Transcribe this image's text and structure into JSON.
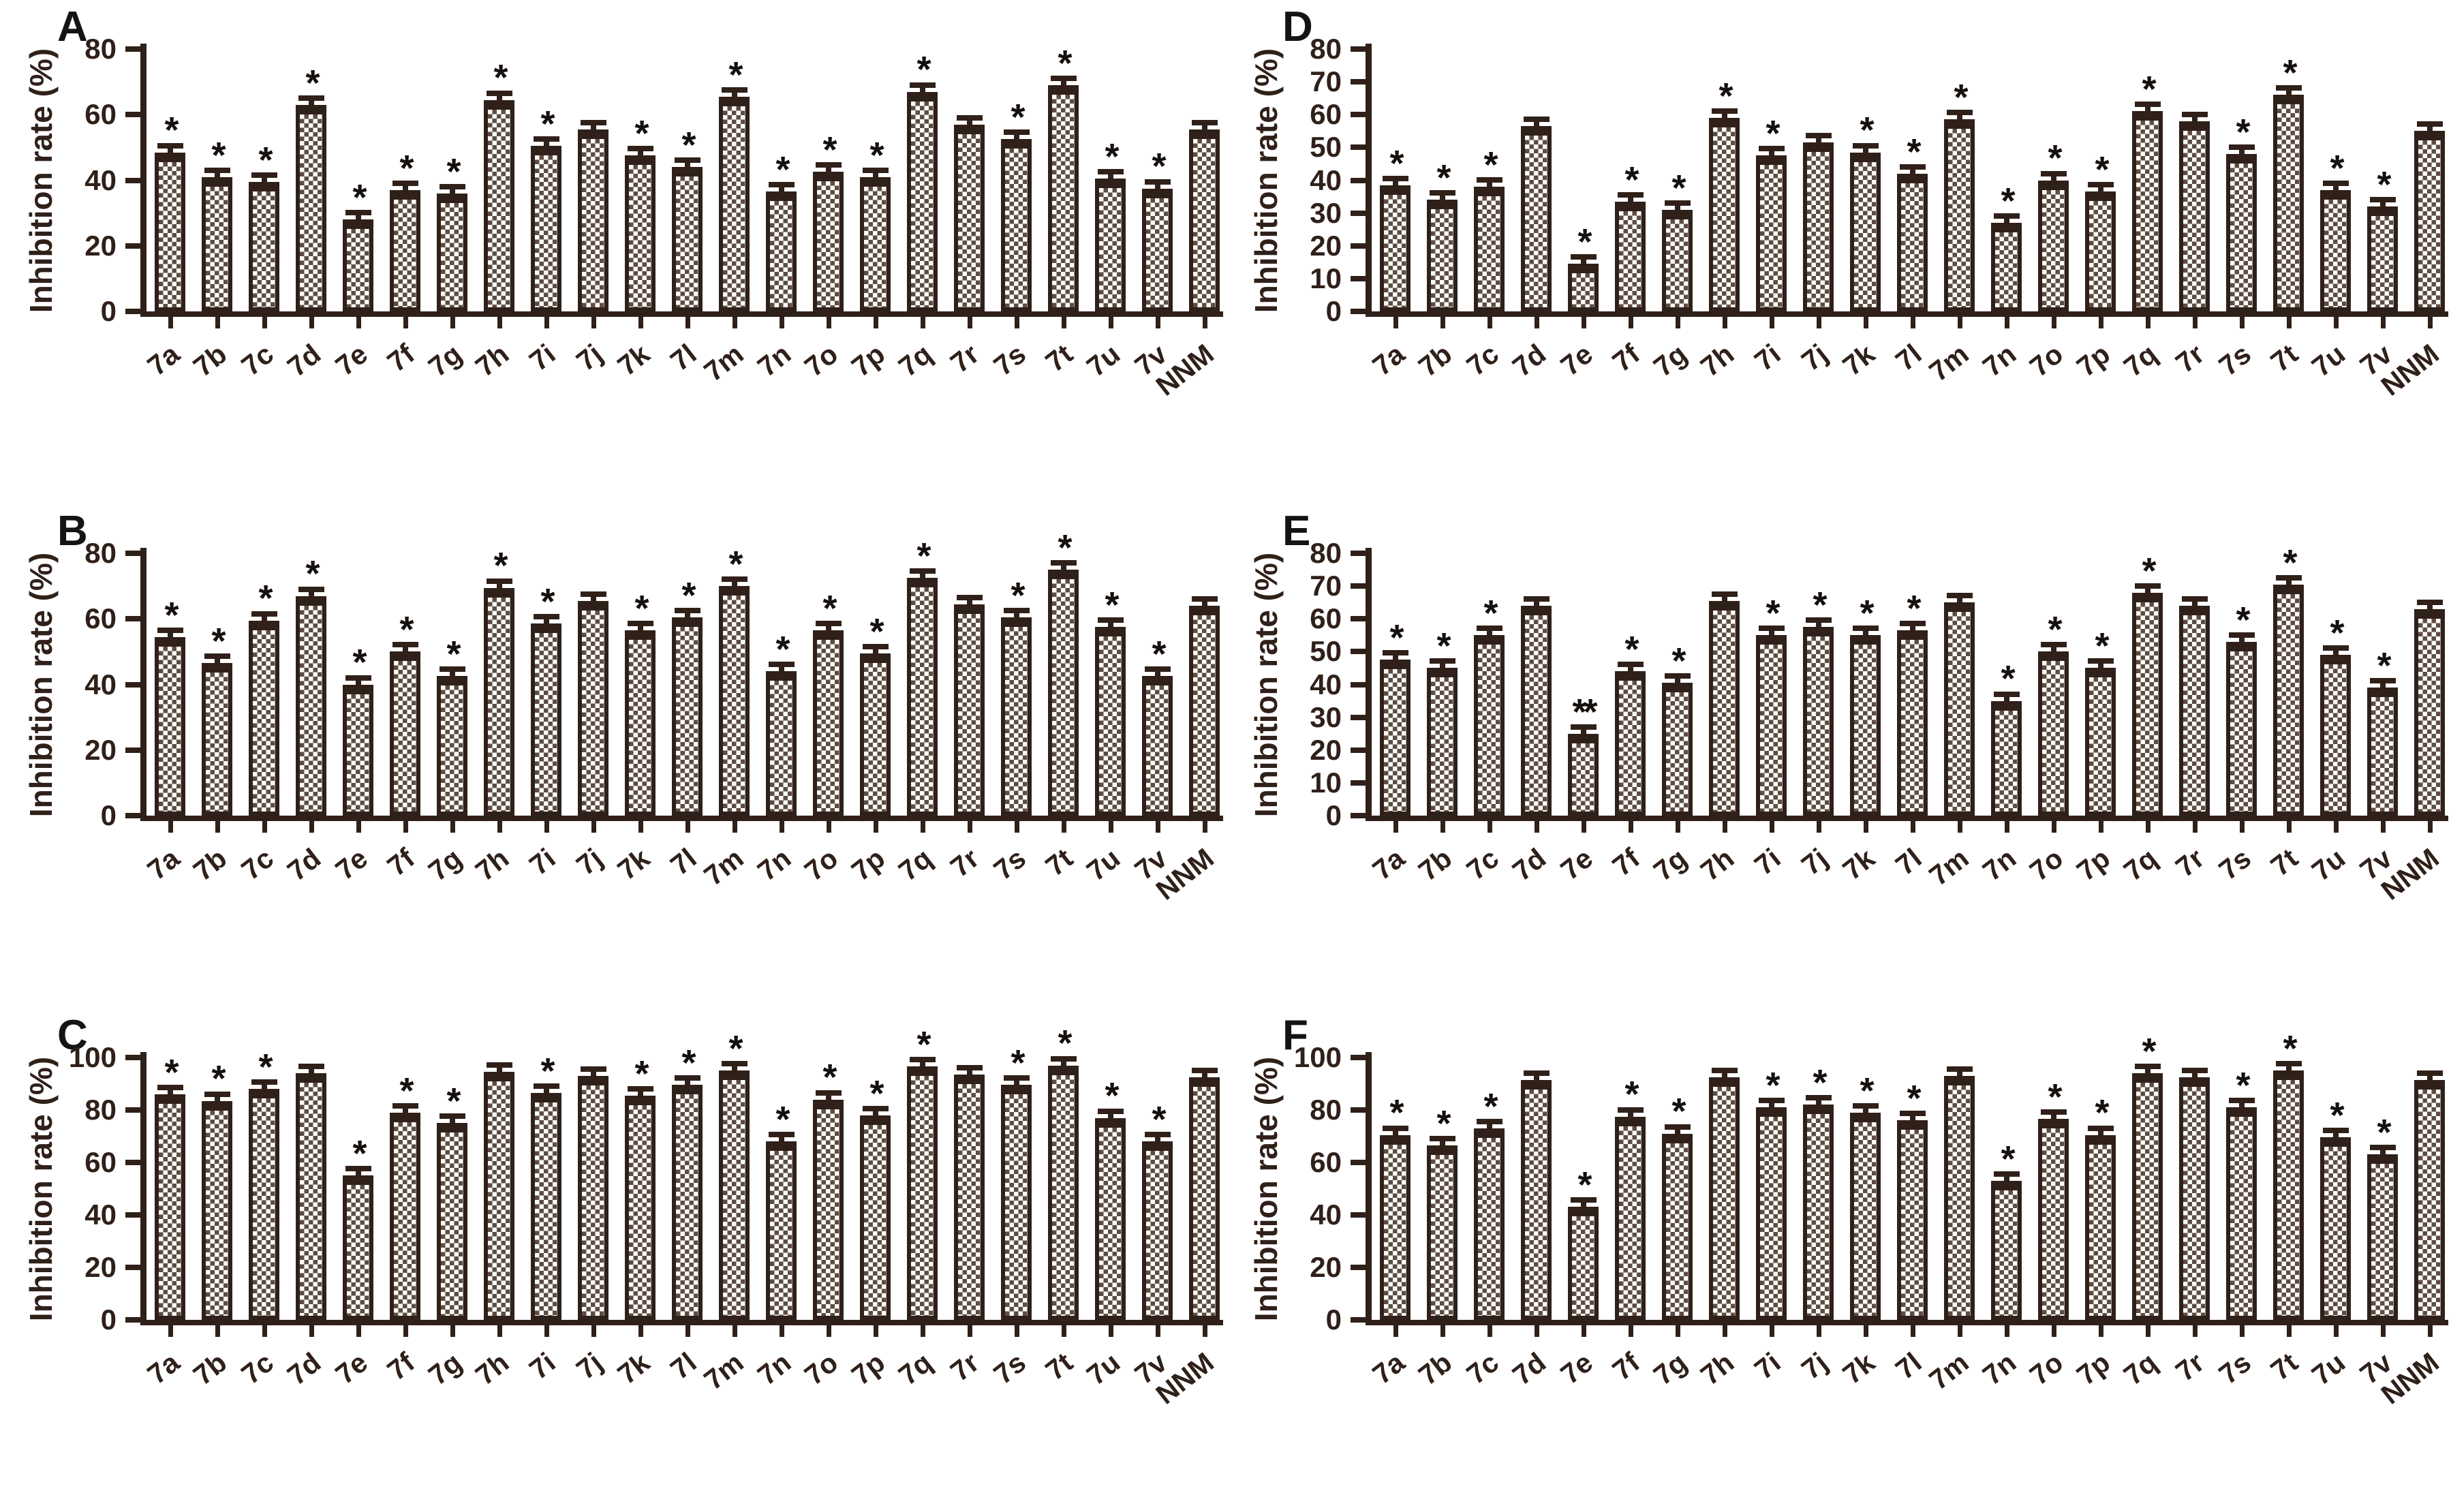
{
  "figure": {
    "background": "#ffffff",
    "ink_color": "#2f2019",
    "bar_fill_light": "#fcfbf9",
    "bar_fill_dark": "#5d4c42",
    "panel_letters": [
      "A",
      "B",
      "C",
      "D",
      "E",
      "F"
    ],
    "axis_title": "Inhibition rate (%)"
  },
  "chart_data": [
    {
      "type": "bar",
      "panel": "A",
      "title": "",
      "xlabel": "",
      "ylabel": "Inhibition rate (%)",
      "ylim": [
        0,
        80
      ],
      "yticks": [
        0,
        20,
        40,
        60,
        80
      ],
      "grid": false,
      "legend": "none",
      "error_bar": true,
      "categories": [
        "7a",
        "7b",
        "7c",
        "7d",
        "7e",
        "7f",
        "7g",
        "7h",
        "7i",
        "7j",
        "7k",
        "7l",
        "7m",
        "7n",
        "7o",
        "7p",
        "7q",
        "7r",
        "7s",
        "7t",
        "7u",
        "7v",
        "NNM"
      ],
      "values": [
        48.5,
        41,
        39.5,
        63,
        28,
        37,
        36,
        64.5,
        50.5,
        55.5,
        47.5,
        44,
        65.5,
        36.5,
        42.5,
        41,
        67,
        57,
        52.5,
        69,
        40.5,
        37.5,
        55.5
      ],
      "sig": [
        "*",
        "*",
        "*",
        "*",
        "*",
        "*",
        "*",
        "*",
        "*",
        "",
        "*",
        "*",
        "*",
        "*",
        "*",
        "*",
        "*",
        "",
        "*",
        "*",
        "*",
        "*",
        ""
      ]
    },
    {
      "type": "bar",
      "panel": "D",
      "title": "",
      "xlabel": "",
      "ylabel": "Inhibition rate (%)",
      "ylim": [
        0,
        80
      ],
      "yticks": [
        0,
        10,
        20,
        30,
        40,
        50,
        60,
        70,
        80
      ],
      "grid": false,
      "legend": "none",
      "error_bar": true,
      "categories": [
        "7a",
        "7b",
        "7c",
        "7d",
        "7e",
        "7f",
        "7g",
        "7h",
        "7i",
        "7j",
        "7k",
        "7l",
        "7m",
        "7n",
        "7o",
        "7p",
        "7q",
        "7r",
        "7s",
        "7t",
        "7u",
        "7v",
        "NNM"
      ],
      "values": [
        38.5,
        34,
        38,
        56.5,
        14.5,
        33.5,
        31,
        59,
        47.5,
        51.5,
        48.5,
        42,
        58.5,
        27,
        40,
        36.5,
        61,
        58,
        48,
        66,
        37,
        32,
        55
      ],
      "sig": [
        "*",
        "*",
        "*",
        "",
        "*",
        "*",
        "*",
        "*",
        "*",
        "",
        "*",
        "*",
        "*",
        "*",
        "*",
        "*",
        "*",
        "",
        "*",
        "*",
        "*",
        "*",
        ""
      ]
    },
    {
      "type": "bar",
      "panel": "B",
      "title": "",
      "xlabel": "",
      "ylabel": "Inhibition rate (%)",
      "ylim": [
        0,
        80
      ],
      "yticks": [
        0,
        20,
        40,
        60,
        80
      ],
      "grid": false,
      "legend": "none",
      "error_bar": true,
      "categories": [
        "7a",
        "7b",
        "7c",
        "7d",
        "7e",
        "7f",
        "7g",
        "7h",
        "7i",
        "7j",
        "7k",
        "7l",
        "7m",
        "7n",
        "7o",
        "7p",
        "7q",
        "7r",
        "7s",
        "7t",
        "7u",
        "7v",
        "NNM"
      ],
      "values": [
        54.5,
        46.5,
        59.5,
        67,
        40,
        50,
        42.5,
        69.5,
        58.5,
        65.5,
        56.5,
        60.5,
        70,
        44,
        56.5,
        49.5,
        72.5,
        64.5,
        60.5,
        75,
        57.5,
        42.5,
        64
      ],
      "sig": [
        "*",
        "*",
        "*",
        "*",
        "*",
        "*",
        "*",
        "*",
        "*",
        "",
        "*",
        "*",
        "*",
        "*",
        "*",
        "*",
        "*",
        "",
        "*",
        "*",
        "*",
        "*",
        ""
      ]
    },
    {
      "type": "bar",
      "panel": "E",
      "title": "",
      "xlabel": "",
      "ylabel": "Inhibition rate (%)",
      "ylim": [
        0,
        80
      ],
      "yticks": [
        0,
        10,
        20,
        30,
        40,
        50,
        60,
        70,
        80
      ],
      "grid": false,
      "legend": "none",
      "error_bar": true,
      "categories": [
        "7a",
        "7b",
        "7c",
        "7d",
        "7e",
        "7f",
        "7g",
        "7h",
        "7i",
        "7j",
        "7k",
        "7l",
        "7m",
        "7n",
        "7o",
        "7p",
        "7q",
        "7r",
        "7s",
        "7t",
        "7u",
        "7v",
        "NNM"
      ],
      "values": [
        47.5,
        45,
        55,
        64,
        25,
        44,
        40.5,
        65.5,
        55,
        57.5,
        55,
        56.5,
        65,
        35,
        50,
        45,
        68,
        64,
        53,
        70.5,
        49,
        39,
        63
      ],
      "sig": [
        "*",
        "*",
        "*",
        "",
        "**",
        "*",
        "*",
        "",
        "*",
        "*",
        "*",
        "*",
        "",
        "*",
        "*",
        "*",
        "*",
        "",
        "*",
        "*",
        "*",
        "*",
        ""
      ]
    },
    {
      "type": "bar",
      "panel": "C",
      "title": "",
      "xlabel": "",
      "ylabel": "Inhibition rate (%)",
      "ylim": [
        0,
        100
      ],
      "yticks": [
        0,
        20,
        40,
        60,
        80,
        100
      ],
      "grid": false,
      "legend": "none",
      "error_bar": true,
      "categories": [
        "7a",
        "7b",
        "7c",
        "7d",
        "7e",
        "7f",
        "7g",
        "7h",
        "7i",
        "7j",
        "7k",
        "7l",
        "7m",
        "7n",
        "7o",
        "7p",
        "7q",
        "7r",
        "7s",
        "7t",
        "7u",
        "7v",
        "NNM"
      ],
      "values": [
        86,
        83.5,
        88,
        94,
        55,
        79,
        75,
        94.5,
        86.5,
        93,
        85.5,
        89.5,
        95,
        68,
        84,
        78,
        96.5,
        93.5,
        89.5,
        97,
        77,
        68,
        92.5
      ],
      "sig": [
        "*",
        "*",
        "*",
        "",
        "*",
        "*",
        "*",
        "",
        "*",
        "",
        "*",
        "*",
        "*",
        "*",
        "*",
        "*",
        "*",
        "",
        "*",
        "*",
        "*",
        "*",
        ""
      ]
    },
    {
      "type": "bar",
      "panel": "F",
      "title": "",
      "xlabel": "",
      "ylabel": "Inhibition rate (%)",
      "ylim": [
        0,
        100
      ],
      "yticks": [
        0,
        20,
        40,
        60,
        80,
        100
      ],
      "grid": false,
      "legend": "none",
      "error_bar": true,
      "categories": [
        "7a",
        "7b",
        "7c",
        "7d",
        "7e",
        "7f",
        "7g",
        "7h",
        "7i",
        "7j",
        "7k",
        "7l",
        "7m",
        "7n",
        "7o",
        "7p",
        "7q",
        "7r",
        "7s",
        "7t",
        "7u",
        "7v",
        "NNM"
      ],
      "values": [
        70.5,
        66.5,
        73,
        91.5,
        43,
        77.5,
        71,
        92.5,
        81,
        82,
        79,
        76,
        93,
        53,
        76.5,
        70.5,
        94,
        92.5,
        81,
        95,
        69.5,
        63,
        91.5
      ],
      "sig": [
        "*",
        "*",
        "*",
        "",
        "*",
        "*",
        "*",
        "",
        "*",
        "*",
        "*",
        "*",
        "",
        "*",
        "*",
        "*",
        "*",
        "",
        "*",
        "*",
        "*",
        "*",
        ""
      ]
    }
  ]
}
